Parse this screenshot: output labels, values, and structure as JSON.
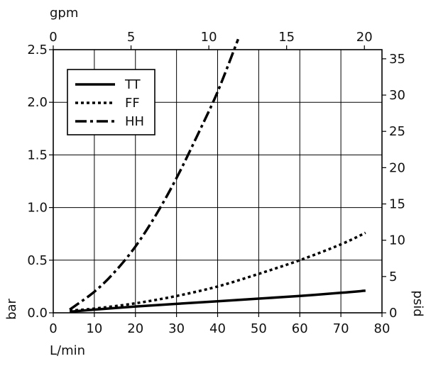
{
  "chart_data": {
    "type": "line",
    "title": "",
    "xlabel": "L/min",
    "ylabel": "bar",
    "x2label": "gpm",
    "y2label": "psid",
    "xlim": [
      0,
      80
    ],
    "ylim": [
      0,
      2.5
    ],
    "x2lim": [
      0,
      21.13
    ],
    "y2lim": [
      0,
      36.26
    ],
    "x_ticks": [
      "0",
      "10",
      "20",
      "30",
      "40",
      "50",
      "60",
      "70",
      "80"
    ],
    "y_ticks": [
      "0.0",
      "0.5",
      "1.0",
      "1.5",
      "2.0",
      "2.5"
    ],
    "x2_ticks": [
      "0",
      "5",
      "10",
      "15",
      "20"
    ],
    "y2_ticks": [
      "0",
      "5",
      "10",
      "15",
      "20",
      "25",
      "30",
      "35"
    ],
    "grid": true,
    "legend_position": "top-left",
    "series": [
      {
        "name": "TT",
        "style": "solid",
        "x": [
          4,
          10,
          20,
          30,
          40,
          50,
          60,
          70,
          76
        ],
        "y": [
          0.01,
          0.03,
          0.06,
          0.085,
          0.11,
          0.135,
          0.16,
          0.19,
          0.21
        ]
      },
      {
        "name": "FF",
        "style": "dotted",
        "x": [
          4,
          10,
          20,
          30,
          40,
          50,
          60,
          70,
          76
        ],
        "y": [
          0.02,
          0.04,
          0.09,
          0.16,
          0.25,
          0.37,
          0.5,
          0.65,
          0.76
        ]
      },
      {
        "name": "HH",
        "style": "dashdot",
        "x": [
          4,
          10,
          15,
          20,
          25,
          30,
          35,
          40,
          45
        ],
        "y": [
          0.03,
          0.2,
          0.39,
          0.63,
          0.93,
          1.28,
          1.68,
          2.1,
          2.6
        ]
      }
    ],
    "colors": {
      "lines": "#000000",
      "grid": "#000000",
      "background": "#ffffff"
    }
  }
}
